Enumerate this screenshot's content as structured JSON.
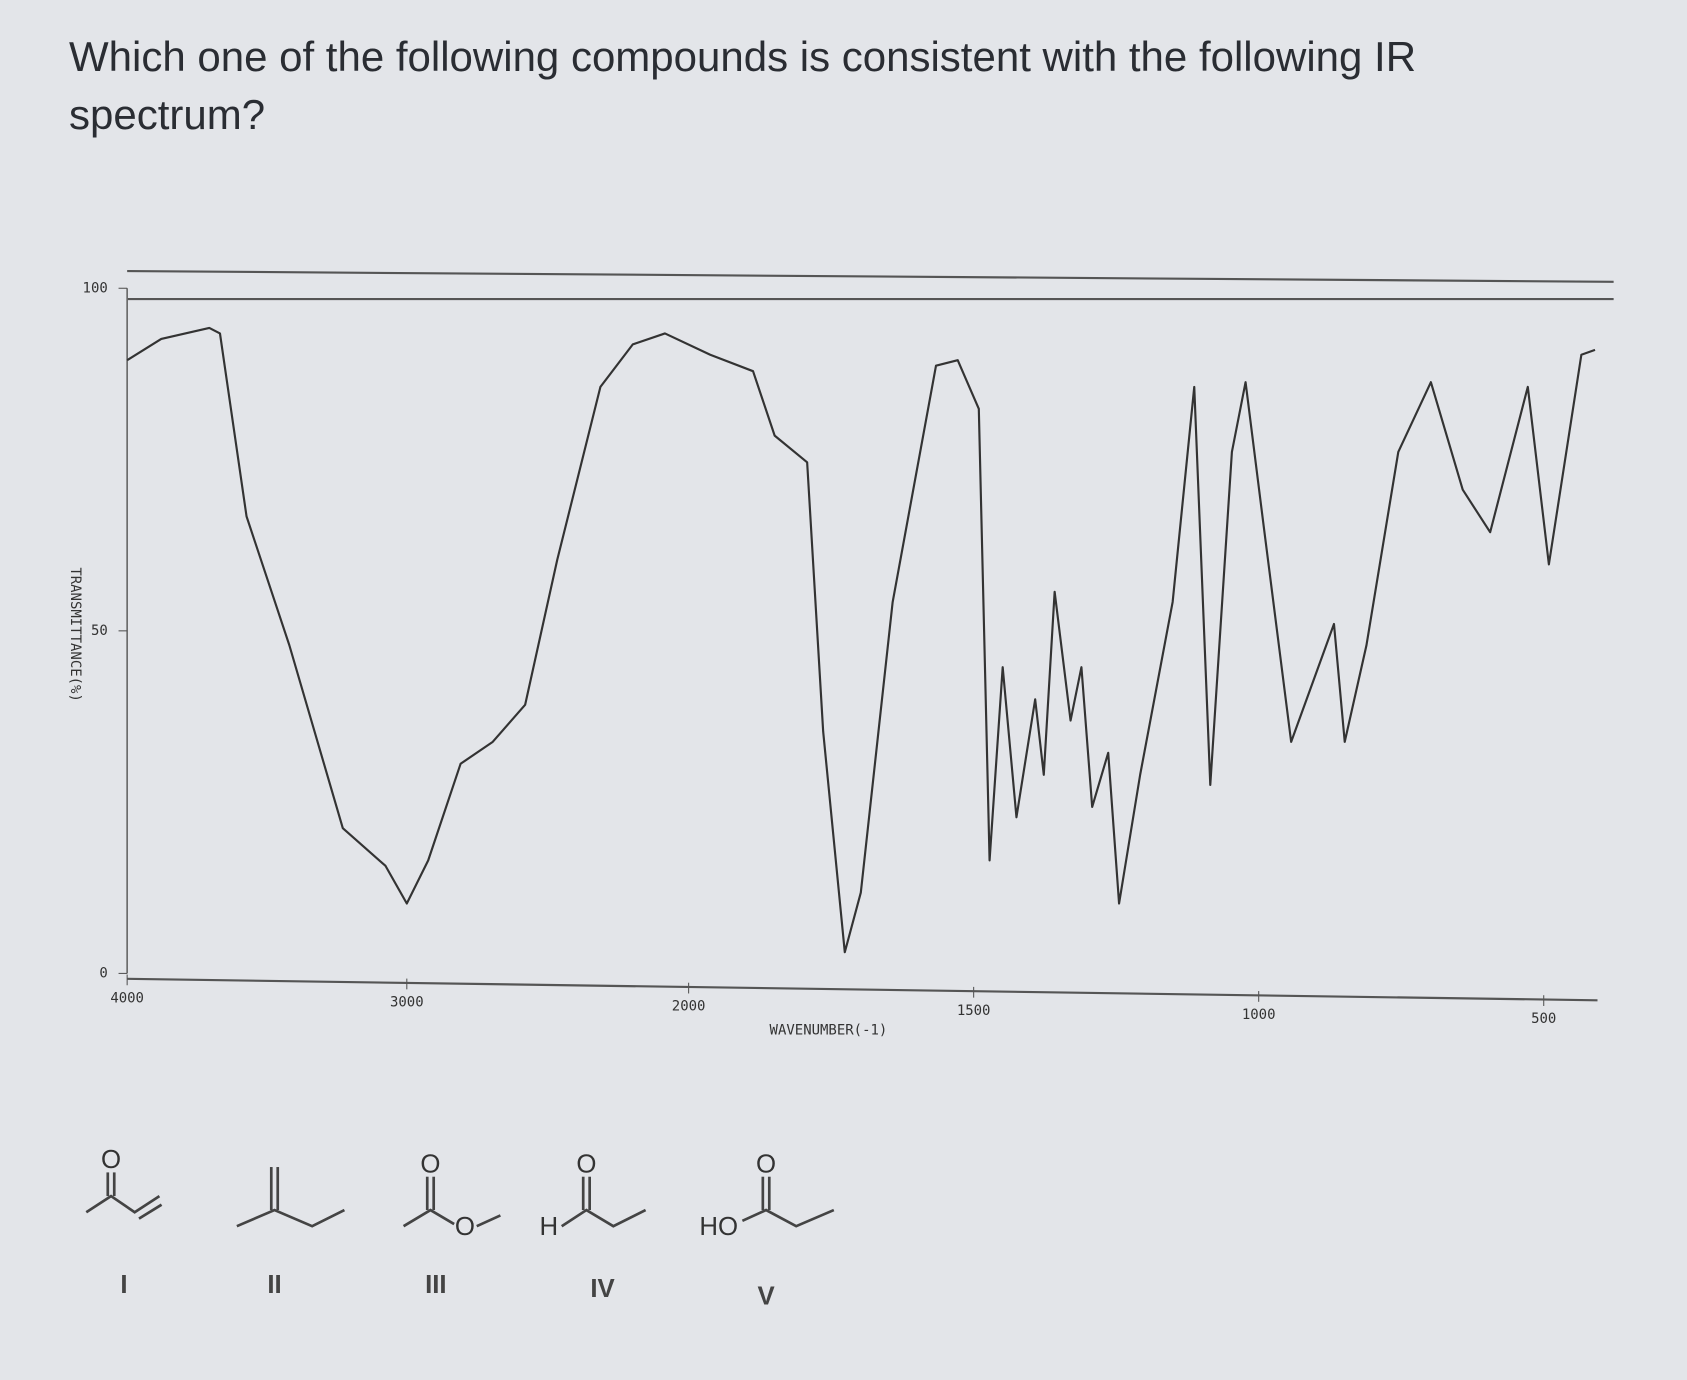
{
  "question": "Which one of the following compounds is consistent with the following IR spectrum?",
  "chart_data": {
    "type": "line",
    "x_label": "WAVENUMBER(-1)",
    "y_label": "TRANSMITTANCE(%)",
    "xlim": [
      4000,
      400
    ],
    "ylim": [
      0,
      100
    ],
    "xticks": [
      4000,
      3000,
      2000,
      1500,
      1000,
      500
    ],
    "yticks": [
      0,
      50,
      100
    ],
    "x": [
      4000,
      3878,
      3706,
      3668,
      3573,
      3420,
      3229,
      3076,
      3000,
      2924,
      2809,
      2695,
      2580,
      2466,
      2313,
      2198,
      2084,
      1962,
      1887,
      1849,
      1792,
      1764,
      1726,
      1698,
      1642,
      1566,
      1528,
      1491,
      1472,
      1449,
      1425,
      1392,
      1377,
      1358,
      1330,
      1311,
      1292,
      1264,
      1245,
      1208,
      1151,
      1113,
      1085,
      1047,
      1023,
      991,
      943,
      868,
      849,
      811,
      755,
      698,
      642,
      594,
      528,
      491,
      434,
      410
    ],
    "series": [
      {
        "color": "#333333",
        "values": [
          89.5,
          92.6,
          94.2,
          93.4,
          66.7,
          47.9,
          21.2,
          15.7,
          10.2,
          16.5,
          30.6,
          33.8,
          39.2,
          60.4,
          85.6,
          91.8,
          93.4,
          90.3,
          87.9,
          78.5,
          74.6,
          35.3,
          3.1,
          11.8,
          54.2,
          88.7,
          89.5,
          82.4,
          16.5,
          44.7,
          22.8,
          40.0,
          29.0,
          55.7,
          36.9,
          44.7,
          24.3,
          32.2,
          10.2,
          29.0,
          54.2,
          85.6,
          27.5,
          76.1,
          86.3,
          65.1,
          33.8,
          51.0,
          33.8,
          47.9,
          76.1,
          86.3,
          70.6,
          64.4,
          85.6,
          59.7,
          90.3,
          91.0
        ]
      }
    ]
  },
  "compounds": [
    {
      "atoms": [
        "O"
      ],
      "label": "I"
    },
    {
      "label": "II"
    },
    {
      "atoms": [
        "O",
        "O"
      ],
      "label": "III"
    },
    {
      "atoms": [
        "O",
        "H"
      ],
      "label": "IV"
    },
    {
      "atoms": [
        "O",
        "HO"
      ],
      "label": "V"
    }
  ]
}
